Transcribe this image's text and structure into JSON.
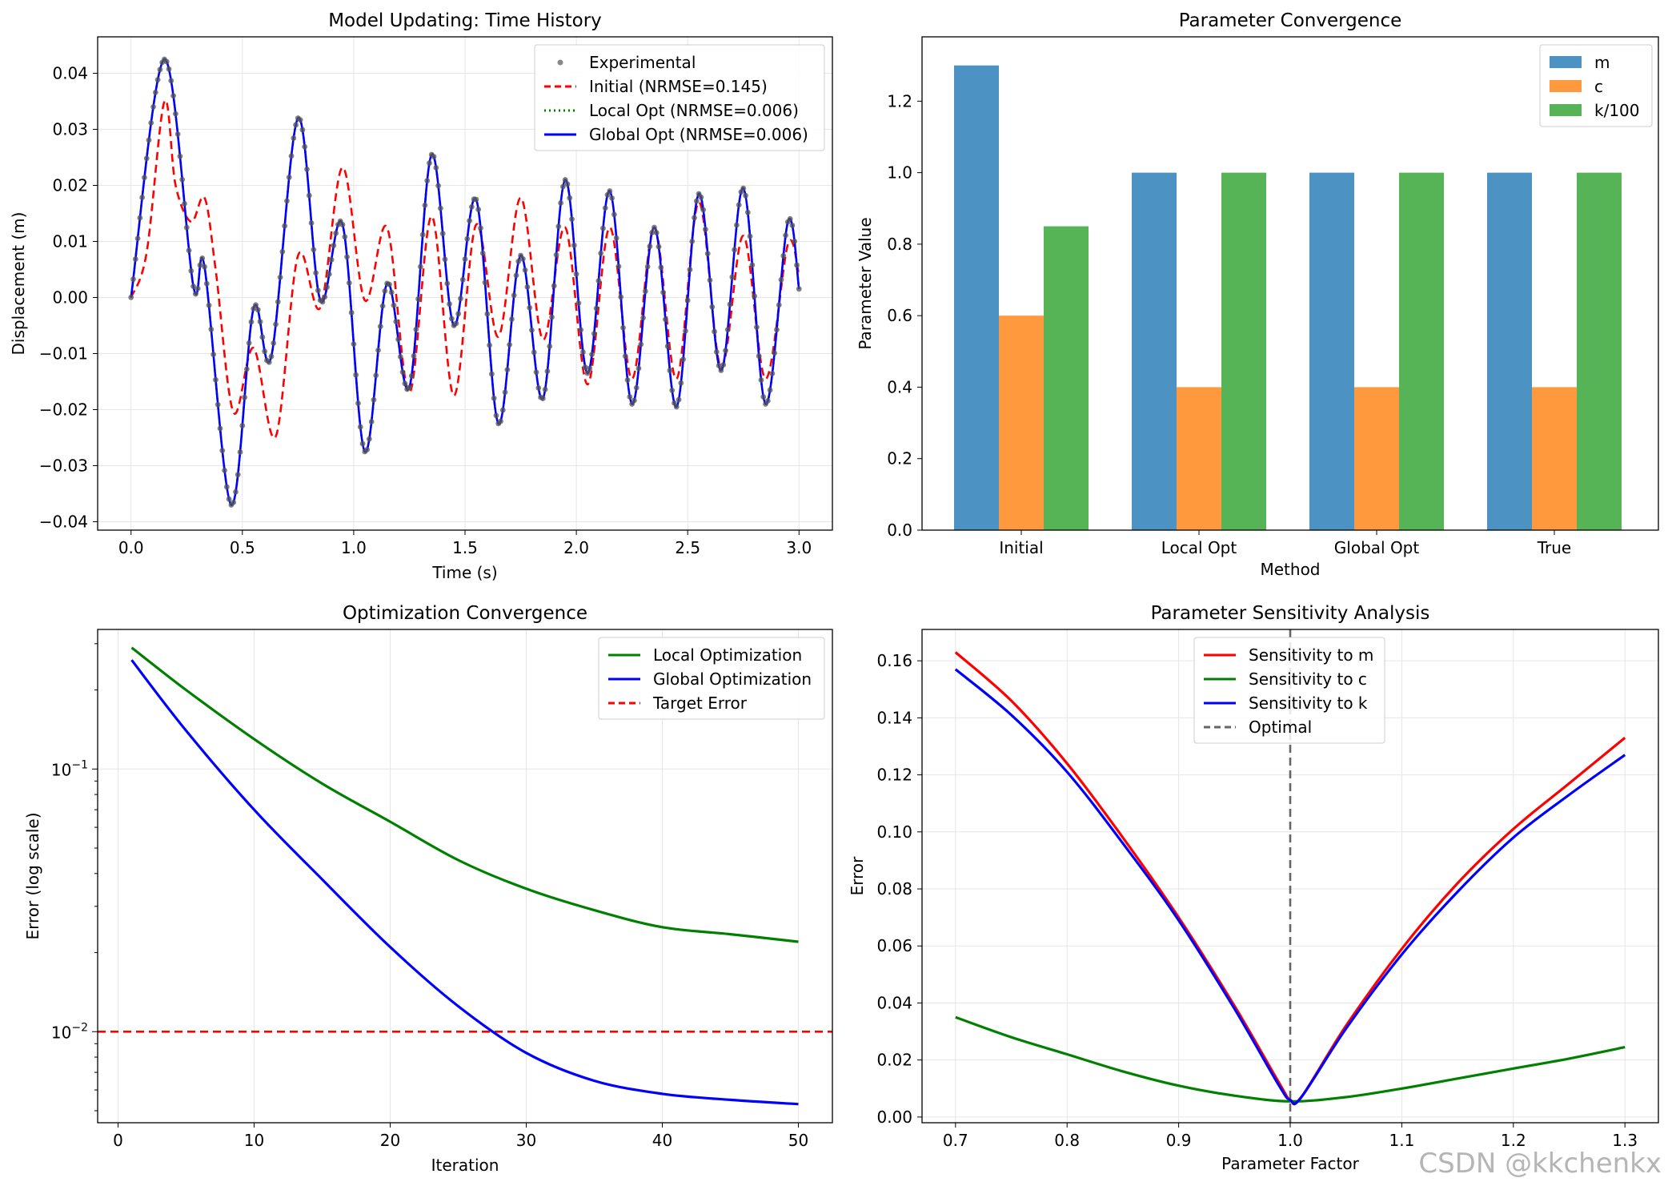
{
  "watermark": "CSDN @kkchenkx",
  "colors": {
    "grid": "#e6e6e6",
    "experimental": "#555555",
    "initial": "#ff0000",
    "local": "#008000",
    "global": "#0000ff",
    "bar_m": "#1f77b4",
    "bar_c": "#ff7f0e",
    "bar_k": "#2ca02c",
    "target": "#ff0000",
    "optimal": "#666666"
  },
  "chart_data": [
    {
      "id": "time_history",
      "type": "line",
      "title": "Model Updating: Time History",
      "xlabel": "Time (s)",
      "ylabel": "Displacement (m)",
      "xlim": [
        -0.15,
        3.15
      ],
      "ylim": [
        -0.0415,
        0.0465
      ],
      "xticks": [
        0.0,
        0.5,
        1.0,
        1.5,
        2.0,
        2.5,
        3.0
      ],
      "xtick_labels": [
        "0.0",
        "0.5",
        "1.0",
        "1.5",
        "2.0",
        "2.5",
        "3.0"
      ],
      "yticks": [
        -0.04,
        -0.03,
        -0.02,
        -0.01,
        0.0,
        0.01,
        0.02,
        0.03,
        0.04
      ],
      "ytick_labels": [
        "−0.04",
        "−0.03",
        "−0.02",
        "−0.01",
        "0.00",
        "0.01",
        "0.02",
        "0.03",
        "0.04"
      ],
      "grid": true,
      "legend_position": "top-right",
      "series": [
        {
          "name": "Experimental",
          "style": "markers",
          "color": "#555555",
          "t": [
            0.0,
            0.15,
            0.28,
            0.33,
            0.45,
            0.55,
            0.63,
            0.75,
            0.85,
            0.95,
            1.05,
            1.15,
            1.25,
            1.35,
            1.45,
            1.55,
            1.65,
            1.75,
            1.85,
            1.95,
            2.05,
            2.15,
            2.25,
            2.35,
            2.45,
            2.55,
            2.65,
            2.75,
            2.85,
            2.95,
            3.0
          ],
          "y": [
            0.0,
            0.0425,
            0.002,
            0.0055,
            -0.037,
            -0.002,
            -0.0105,
            0.032,
            -0.0005,
            0.013,
            -0.0275,
            0.0025,
            -0.016,
            0.0255,
            -0.005,
            0.0175,
            -0.0225,
            0.0075,
            -0.018,
            0.021,
            -0.0135,
            0.019,
            -0.019,
            0.0125,
            -0.0195,
            0.0185,
            -0.013,
            0.0195,
            -0.019,
            0.0135,
            0.0015
          ]
        },
        {
          "name": "Initial (NRMSE=0.145)",
          "style": "dashed",
          "color": "#ff0000",
          "t": [
            0.0,
            0.07,
            0.15,
            0.2,
            0.27,
            0.33,
            0.38,
            0.46,
            0.55,
            0.65,
            0.75,
            0.85,
            0.95,
            1.05,
            1.15,
            1.25,
            1.35,
            1.45,
            1.55,
            1.65,
            1.75,
            1.85,
            1.95,
            2.05,
            2.15,
            2.25,
            2.35,
            2.45,
            2.55,
            2.65,
            2.75,
            2.85,
            2.95,
            3.0
          ],
          "y": [
            0.0,
            0.008,
            0.035,
            0.02,
            0.0135,
            0.0178,
            0.005,
            -0.0205,
            -0.009,
            -0.0248,
            0.0075,
            -0.0018,
            0.0232,
            -0.0005,
            0.0125,
            -0.017,
            0.0145,
            -0.0175,
            0.013,
            -0.007,
            0.0178,
            -0.0075,
            0.0125,
            -0.0155,
            0.0125,
            -0.0145,
            0.0125,
            -0.0145,
            0.017,
            -0.0125,
            0.011,
            -0.0145,
            0.0095,
            0.004
          ]
        },
        {
          "name": "Local Opt (NRMSE=0.006)",
          "style": "dotted",
          "color": "#008000"
        },
        {
          "name": "Global Opt (NRMSE=0.006)",
          "style": "solid",
          "color": "#0000ff"
        }
      ]
    },
    {
      "id": "param_convergence",
      "type": "bar",
      "title": "Parameter Convergence",
      "xlabel": "Method",
      "ylabel": "Parameter Value",
      "categories": [
        "Initial",
        "Local Opt",
        "Global Opt",
        "True"
      ],
      "ylim": [
        0.0,
        1.38
      ],
      "yticks": [
        0.0,
        0.2,
        0.4,
        0.6,
        0.8,
        1.0,
        1.2
      ],
      "ytick_labels": [
        "0.0",
        "0.2",
        "0.4",
        "0.6",
        "0.8",
        "1.0",
        "1.2"
      ],
      "grid": false,
      "legend_position": "top-right",
      "series": [
        {
          "name": "m",
          "color": "#1f77b4",
          "values": [
            1.3,
            1.0,
            1.0,
            1.0
          ]
        },
        {
          "name": "c",
          "color": "#ff7f0e",
          "values": [
            0.6,
            0.4,
            0.4,
            0.4
          ]
        },
        {
          "name": "k/100",
          "color": "#2ca02c",
          "values": [
            0.85,
            1.0,
            1.0,
            1.0
          ]
        }
      ]
    },
    {
      "id": "opt_convergence",
      "type": "line",
      "title": "Optimization Convergence",
      "xlabel": "Iteration",
      "ylabel": "Error (log scale)",
      "yscale": "log",
      "xlim": [
        -1.5,
        52.5
      ],
      "ylim": [
        0.0045,
        0.34
      ],
      "xticks": [
        0,
        10,
        20,
        30,
        40,
        50
      ],
      "xtick_labels": [
        "0",
        "10",
        "20",
        "30",
        "40",
        "50"
      ],
      "yticks_major": [
        0.01,
        0.1
      ],
      "ytick_labels": [
        "10^-2",
        "10^-1"
      ],
      "grid": true,
      "legend_position": "top-right",
      "series": [
        {
          "name": "Local Optimization",
          "color": "#008000",
          "x": [
            1,
            5,
            10,
            15,
            20,
            25,
            30,
            35,
            40,
            45,
            50
          ],
          "y": [
            0.29,
            0.2,
            0.13,
            0.088,
            0.063,
            0.045,
            0.035,
            0.029,
            0.025,
            0.0235,
            0.022
          ]
        },
        {
          "name": "Global Optimization",
          "color": "#0000ff",
          "x": [
            1,
            5,
            10,
            15,
            20,
            25,
            30,
            35,
            40,
            45,
            50
          ],
          "y": [
            0.26,
            0.14,
            0.07,
            0.038,
            0.021,
            0.0125,
            0.0083,
            0.0065,
            0.0058,
            0.0055,
            0.0053
          ]
        },
        {
          "name": "Target Error",
          "color": "#ff0000",
          "style": "dashed",
          "y_const": 0.01
        }
      ]
    },
    {
      "id": "sensitivity",
      "type": "line",
      "title": "Parameter Sensitivity Analysis",
      "xlabel": "Parameter Factor",
      "ylabel": "Error",
      "xlim": [
        0.67,
        1.33
      ],
      "ylim": [
        -0.002,
        0.171
      ],
      "xticks": [
        0.7,
        0.8,
        0.9,
        1.0,
        1.1,
        1.2,
        1.3
      ],
      "xtick_labels": [
        "0.7",
        "0.8",
        "0.9",
        "1.0",
        "1.1",
        "1.2",
        "1.3"
      ],
      "yticks": [
        0.0,
        0.02,
        0.04,
        0.06,
        0.08,
        0.1,
        0.12,
        0.14,
        0.16
      ],
      "ytick_labels": [
        "0.00",
        "0.02",
        "0.04",
        "0.06",
        "0.08",
        "0.10",
        "0.12",
        "0.14",
        "0.16"
      ],
      "grid": true,
      "legend_position": "top-center",
      "series": [
        {
          "name": "Sensitivity to m",
          "color": "#ff0000",
          "x": [
            0.7,
            0.75,
            0.8,
            0.85,
            0.9,
            0.95,
            0.99,
            1.0,
            1.01,
            1.05,
            1.1,
            1.15,
            1.2,
            1.25,
            1.3
          ],
          "y": [
            0.163,
            0.146,
            0.124,
            0.098,
            0.07,
            0.039,
            0.012,
            0.006,
            0.007,
            0.032,
            0.059,
            0.082,
            0.101,
            0.117,
            0.133
          ]
        },
        {
          "name": "Sensitivity to c",
          "color": "#008000",
          "x": [
            0.7,
            0.75,
            0.8,
            0.85,
            0.9,
            0.95,
            1.0,
            1.05,
            1.1,
            1.15,
            1.2,
            1.25,
            1.3
          ],
          "y": [
            0.035,
            0.028,
            0.022,
            0.016,
            0.011,
            0.0075,
            0.0055,
            0.007,
            0.01,
            0.0135,
            0.017,
            0.0205,
            0.0245
          ]
        },
        {
          "name": "Sensitivity to k",
          "color": "#0000ff",
          "x": [
            0.7,
            0.75,
            0.8,
            0.85,
            0.9,
            0.95,
            0.99,
            1.0,
            1.01,
            1.05,
            1.1,
            1.15,
            1.2,
            1.25,
            1.3
          ],
          "y": [
            0.157,
            0.141,
            0.121,
            0.096,
            0.069,
            0.038,
            0.011,
            0.006,
            0.007,
            0.031,
            0.057,
            0.079,
            0.098,
            0.113,
            0.127
          ]
        },
        {
          "name": "Optimal",
          "color": "#666666",
          "style": "dashed",
          "x_const": 1.0
        }
      ]
    }
  ]
}
